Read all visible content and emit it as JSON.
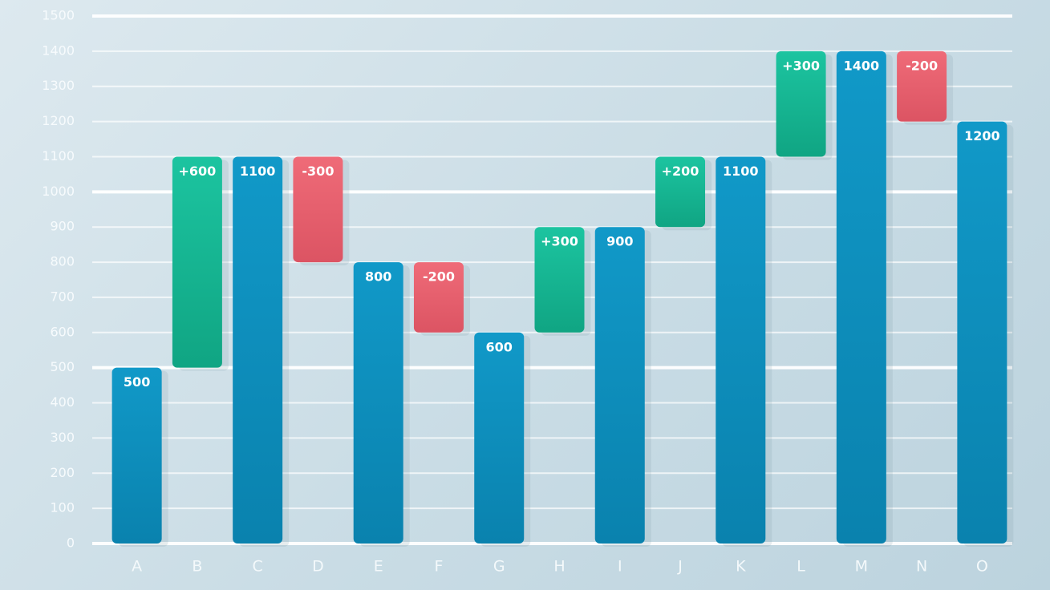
{
  "chart_data": {
    "type": "waterfall",
    "categories": [
      "A",
      "B",
      "C",
      "D",
      "E",
      "F",
      "G",
      "H",
      "I",
      "J",
      "K",
      "L",
      "M",
      "N",
      "O"
    ],
    "measures": [
      "absolute",
      "relative",
      "absolute",
      "relative",
      "absolute",
      "relative",
      "absolute",
      "relative",
      "absolute",
      "relative",
      "absolute",
      "relative",
      "absolute",
      "relative",
      "absolute"
    ],
    "values": [
      500,
      600,
      1100,
      -300,
      800,
      -200,
      600,
      300,
      900,
      200,
      1100,
      300,
      1400,
      -200,
      1200
    ],
    "value_labels": [
      "500",
      "+600",
      "1100",
      "-300",
      "800",
      "-200",
      "600",
      "+300",
      "900",
      "+200",
      "1100",
      "+300",
      "1400",
      "-200",
      "1200"
    ],
    "colors": {
      "total": "#0b8fbf",
      "increase": "#17b894",
      "decrease": "#e8616f"
    },
    "ylim": [
      0,
      1500
    ],
    "yticks": [
      0,
      100,
      200,
      300,
      400,
      500,
      600,
      700,
      800,
      900,
      1000,
      1100,
      1200,
      1300,
      1400,
      1500
    ],
    "grid": true
  }
}
